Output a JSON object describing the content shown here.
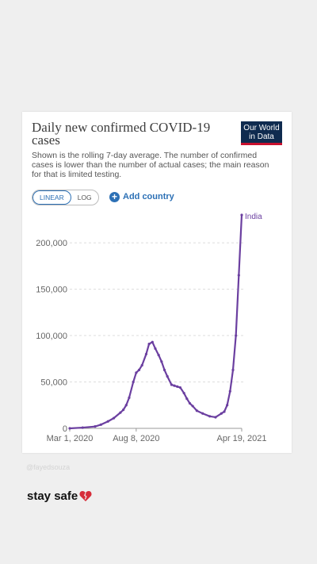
{
  "card": {
    "title": "Daily new confirmed COVID-19 cases",
    "logo_line1": "Our World",
    "logo_line2": "in Data",
    "subtitle": "Shown is the rolling 7-day average. The number of confirmed cases is lower than the number of actual cases; the main reason for that is limited testing.",
    "scale_linear": "LINEAR",
    "scale_log": "LOG",
    "add_country": "Add country"
  },
  "colors": {
    "line": "#6b3fa0",
    "accent": "#2c70b5",
    "logo_bg": "#0f2b4f",
    "logo_stripe": "#c8102e"
  },
  "chart_data": {
    "type": "line",
    "x_start": "2020-03-01",
    "x_end": "2021-04-19",
    "ylim": [
      0,
      230000
    ],
    "y_ticks": [
      0,
      50000,
      100000,
      150000,
      200000
    ],
    "y_tick_labels": [
      "0",
      "50,000",
      "100,000",
      "150,000",
      "200,000"
    ],
    "x_tick_labels": [
      "Mar 1, 2020",
      "Aug 8, 2020",
      "Apr 19, 2021"
    ],
    "x_tick_dates": [
      "2020-03-01",
      "2020-08-08",
      "2021-04-19"
    ],
    "grid": "horizontal dashed",
    "series": [
      {
        "name": "India",
        "x": [
          "2020-03-01",
          "2020-04-01",
          "2020-05-01",
          "2020-05-15",
          "2020-06-01",
          "2020-06-15",
          "2020-07-01",
          "2020-07-08",
          "2020-07-15",
          "2020-07-22",
          "2020-08-01",
          "2020-08-08",
          "2020-08-15",
          "2020-08-22",
          "2020-09-01",
          "2020-09-08",
          "2020-09-16",
          "2020-09-23",
          "2020-10-01",
          "2020-10-08",
          "2020-10-15",
          "2020-10-22",
          "2020-11-01",
          "2020-11-08",
          "2020-11-15",
          "2020-11-22",
          "2020-12-01",
          "2020-12-08",
          "2020-12-15",
          "2020-12-22",
          "2021-01-01",
          "2021-01-15",
          "2021-02-01",
          "2021-02-15",
          "2021-03-01",
          "2021-03-08",
          "2021-03-15",
          "2021-03-22",
          "2021-03-29",
          "2021-04-05",
          "2021-04-12",
          "2021-04-19"
        ],
        "y": [
          0,
          800,
          2000,
          4000,
          7500,
          11000,
          17000,
          20000,
          25000,
          33000,
          50000,
          60000,
          63000,
          68000,
          80000,
          91000,
          93000,
          86000,
          79000,
          72000,
          63000,
          56000,
          47000,
          46000,
          45000,
          44000,
          38000,
          32000,
          27000,
          24000,
          19000,
          16000,
          13000,
          12000,
          16000,
          18000,
          25000,
          40000,
          63000,
          100000,
          165000,
          230000
        ]
      }
    ]
  },
  "footer": {
    "credit": "@fayedsouza",
    "caption": "stay safe"
  }
}
